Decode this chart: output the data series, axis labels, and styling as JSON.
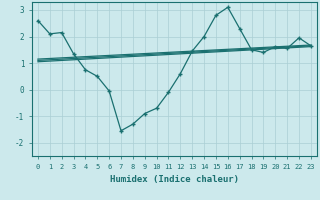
{
  "xlabel": "Humidex (Indice chaleur)",
  "ylabel": "",
  "xlim": [
    -0.5,
    23.5
  ],
  "ylim": [
    -2.5,
    3.3
  ],
  "xticks": [
    0,
    1,
    2,
    3,
    4,
    5,
    6,
    7,
    8,
    9,
    10,
    11,
    12,
    13,
    14,
    15,
    16,
    17,
    18,
    19,
    20,
    21,
    22,
    23
  ],
  "yticks": [
    -2,
    -1,
    0,
    1,
    2,
    3
  ],
  "background_color": "#cce9ec",
  "grid_color": "#aacfd5",
  "line_color": "#1a7070",
  "main_curve_x": [
    0,
    1,
    2,
    3,
    4,
    5,
    6,
    7,
    8,
    9,
    10,
    11,
    12,
    13,
    14,
    15,
    16,
    17,
    18,
    19,
    20,
    21,
    22,
    23
  ],
  "main_curve_y": [
    2.6,
    2.1,
    2.15,
    1.35,
    0.75,
    0.5,
    -0.05,
    -1.55,
    -1.3,
    -0.9,
    -0.7,
    -0.1,
    0.6,
    1.45,
    2.0,
    2.8,
    3.1,
    2.3,
    1.5,
    1.4,
    1.62,
    1.55,
    1.95,
    1.65
  ],
  "line2_x": [
    0,
    23
  ],
  "line2_y": [
    1.05,
    1.62
  ],
  "line3_x": [
    0,
    23
  ],
  "line3_y": [
    1.1,
    1.65
  ],
  "line4_x": [
    0,
    23
  ],
  "line4_y": [
    1.15,
    1.68
  ],
  "marker_x": [
    0,
    1,
    2,
    3,
    4,
    5,
    6,
    7,
    8,
    9,
    10,
    11,
    12,
    13,
    14,
    15,
    16,
    17,
    18,
    19,
    20,
    21,
    22,
    23
  ],
  "marker_y": [
    2.6,
    2.1,
    2.15,
    1.35,
    0.75,
    0.5,
    -0.05,
    -1.55,
    -1.3,
    -0.9,
    -0.7,
    -0.1,
    0.6,
    1.45,
    2.0,
    2.8,
    3.1,
    2.3,
    1.5,
    1.4,
    1.62,
    1.55,
    1.95,
    1.65
  ]
}
